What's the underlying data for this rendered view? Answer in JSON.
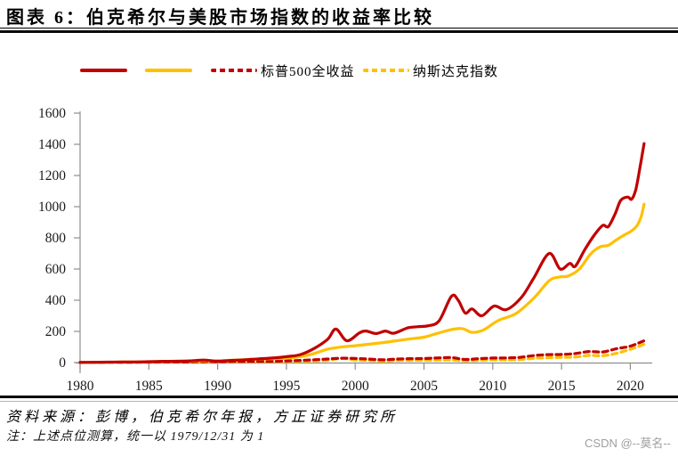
{
  "header": {
    "title": "图表 6：伯克希尔与美股市场指数的收益率比较"
  },
  "legend": {
    "items": [
      {
        "id": "solid-red",
        "label": "",
        "style": "solid",
        "color": "#C00000"
      },
      {
        "id": "solid-yellow",
        "label": "",
        "style": "solid",
        "color": "#FFC000"
      },
      {
        "id": "dashed-red",
        "label": "标普500全收益",
        "style": "dashed",
        "color": "#C00000"
      },
      {
        "id": "dashed-yellow",
        "label": "纳斯达克指数",
        "style": "dashed",
        "color": "#FFC000"
      }
    ]
  },
  "chart_data": {
    "type": "line",
    "title": "图表 6：伯克希尔与美股市场指数的收益率比较",
    "index_note": "统一以 1979/12/31 为 1",
    "grid": false,
    "legend_position": "top",
    "x_axis": {
      "ticks": [
        1980,
        1985,
        1990,
        1995,
        2000,
        2005,
        2010,
        2015,
        2020
      ],
      "range": [
        1980,
        2021.2
      ]
    },
    "y_axis": {
      "ticks": [
        0,
        200,
        400,
        600,
        800,
        1000,
        1200,
        1400,
        1600
      ],
      "range": [
        0,
        1600
      ]
    },
    "series": [
      {
        "id": "dashed_yellow",
        "label": "纳斯达克指数",
        "color": "#FFC000",
        "dashed": true,
        "points": [
          [
            1980,
            1.2
          ],
          [
            1981,
            1.3
          ],
          [
            1982,
            1.5
          ],
          [
            1983,
            1.9
          ],
          [
            1984,
            1.6
          ],
          [
            1985,
            2.1
          ],
          [
            1986,
            2.3
          ],
          [
            1987,
            2.2
          ],
          [
            1988,
            2.5
          ],
          [
            1989,
            3
          ],
          [
            1990,
            2.5
          ],
          [
            1991,
            3.7
          ],
          [
            1992,
            4.4
          ],
          [
            1993,
            5.1
          ],
          [
            1994,
            5
          ],
          [
            1995,
            7
          ],
          [
            1996,
            8.5
          ],
          [
            1997,
            10.4
          ],
          [
            1998,
            14.5
          ],
          [
            1999,
            27
          ],
          [
            2000,
            16.4
          ],
          [
            2001,
            13
          ],
          [
            2002,
            8.8
          ],
          [
            2003,
            13.3
          ],
          [
            2004,
            14.4
          ],
          [
            2005,
            14.6
          ],
          [
            2006,
            16
          ],
          [
            2007,
            17.6
          ],
          [
            2008,
            10.4
          ],
          [
            2009,
            15
          ],
          [
            2010,
            17.6
          ],
          [
            2011,
            17.3
          ],
          [
            2012,
            20
          ],
          [
            2013,
            27.7
          ],
          [
            2014,
            31.4
          ],
          [
            2015,
            33.2
          ],
          [
            2016,
            35.7
          ],
          [
            2017,
            45.7
          ],
          [
            2018,
            44
          ],
          [
            2019,
            59.5
          ],
          [
            2020,
            85
          ],
          [
            2021,
            118
          ]
        ]
      },
      {
        "id": "dashed_red",
        "label": "标普500全收益",
        "color": "#C00000",
        "dashed": true,
        "points": [
          [
            1980,
            1.3
          ],
          [
            1981,
            1.3
          ],
          [
            1982,
            1.6
          ],
          [
            1983,
            2
          ],
          [
            1984,
            2.1
          ],
          [
            1985,
            2.8
          ],
          [
            1986,
            3.3
          ],
          [
            1987,
            3.5
          ],
          [
            1988,
            4
          ],
          [
            1989,
            5.3
          ],
          [
            1990,
            5.1
          ],
          [
            1991,
            6.7
          ],
          [
            1992,
            7.2
          ],
          [
            1993,
            7.9
          ],
          [
            1994,
            8
          ],
          [
            1995,
            11
          ],
          [
            1996,
            13.6
          ],
          [
            1997,
            18
          ],
          [
            1998,
            23
          ],
          [
            1999,
            28
          ],
          [
            2000,
            26
          ],
          [
            2001,
            22.5
          ],
          [
            2002,
            17.5
          ],
          [
            2003,
            22.5
          ],
          [
            2004,
            25
          ],
          [
            2005,
            26
          ],
          [
            2006,
            30
          ],
          [
            2007,
            32
          ],
          [
            2008,
            20
          ],
          [
            2009,
            25
          ],
          [
            2010,
            29
          ],
          [
            2011,
            30
          ],
          [
            2012,
            34
          ],
          [
            2013,
            45
          ],
          [
            2014,
            51
          ],
          [
            2015,
            52
          ],
          [
            2016,
            58
          ],
          [
            2017,
            71
          ],
          [
            2018,
            68
          ],
          [
            2019,
            89
          ],
          [
            2020,
            105
          ],
          [
            2021,
            140
          ]
        ]
      },
      {
        "id": "solid_yellow",
        "label": "",
        "color": "#FFC000",
        "dashed": false,
        "points": [
          [
            1980,
            1.3
          ],
          [
            1981,
            1.7
          ],
          [
            1982,
            2.3
          ],
          [
            1983,
            3.2
          ],
          [
            1984,
            3.6
          ],
          [
            1985,
            5
          ],
          [
            1986,
            7
          ],
          [
            1987,
            8
          ],
          [
            1988,
            9.5
          ],
          [
            1989,
            12
          ],
          [
            1990,
            11
          ],
          [
            1991,
            15
          ],
          [
            1992,
            19
          ],
          [
            1993,
            23
          ],
          [
            1994,
            25
          ],
          [
            1995,
            28
          ],
          [
            1996,
            38
          ],
          [
            1997,
            58
          ],
          [
            1998,
            86
          ],
          [
            1999,
            100
          ],
          [
            2000,
            108
          ],
          [
            2001,
            118
          ],
          [
            2002,
            128
          ],
          [
            2003,
            140
          ],
          [
            2004,
            152
          ],
          [
            2005,
            163
          ],
          [
            2006,
            188
          ],
          [
            2007,
            212
          ],
          [
            2007.8,
            218
          ],
          [
            2008.5,
            194
          ],
          [
            2009.3,
            208
          ],
          [
            2010.4,
            270
          ],
          [
            2011.7,
            315
          ],
          [
            2013,
            415
          ],
          [
            2014.1,
            525
          ],
          [
            2014.8,
            548
          ],
          [
            2015.5,
            556
          ],
          [
            2016.3,
            600
          ],
          [
            2017.1,
            695
          ],
          [
            2017.8,
            742
          ],
          [
            2018.4,
            752
          ],
          [
            2019,
            788
          ],
          [
            2019.6,
            820
          ],
          [
            2020.1,
            845
          ],
          [
            2020.5,
            880
          ],
          [
            2020.8,
            940
          ],
          [
            2021,
            1016
          ]
        ]
      },
      {
        "id": "solid_red",
        "label": "",
        "color": "#C00000",
        "dashed": false,
        "points": [
          [
            1980,
            1.4
          ],
          [
            1981,
            1.9
          ],
          [
            1982,
            2.6
          ],
          [
            1983,
            3.6
          ],
          [
            1984,
            3.8
          ],
          [
            1985,
            5.5
          ],
          [
            1986,
            8
          ],
          [
            1987,
            8.5
          ],
          [
            1988,
            11
          ],
          [
            1989,
            16
          ],
          [
            1990,
            9
          ],
          [
            1991,
            14
          ],
          [
            1992,
            18
          ],
          [
            1993,
            24
          ],
          [
            1994,
            29
          ],
          [
            1995,
            38
          ],
          [
            1996,
            51
          ],
          [
            1997,
            90
          ],
          [
            1998,
            150
          ],
          [
            1998.6,
            215
          ],
          [
            1999.4,
            140
          ],
          [
            2000.3,
            190
          ],
          [
            2000.8,
            202
          ],
          [
            2001.5,
            186
          ],
          [
            2002.2,
            202
          ],
          [
            2002.8,
            188
          ],
          [
            2003.8,
            222
          ],
          [
            2004.5,
            230
          ],
          [
            2005.3,
            236
          ],
          [
            2006.1,
            268
          ],
          [
            2007,
            425
          ],
          [
            2007.5,
            398
          ],
          [
            2008,
            318
          ],
          [
            2008.5,
            344
          ],
          [
            2009.2,
            300
          ],
          [
            2010.1,
            362
          ],
          [
            2011,
            340
          ],
          [
            2012.1,
            420
          ],
          [
            2013,
            545
          ],
          [
            2014.1,
            700
          ],
          [
            2014.9,
            600
          ],
          [
            2015.6,
            636
          ],
          [
            2016,
            618
          ],
          [
            2016.7,
            726
          ],
          [
            2017.4,
            820
          ],
          [
            2018,
            880
          ],
          [
            2018.4,
            872
          ],
          [
            2018.9,
            955
          ],
          [
            2019.3,
            1040
          ],
          [
            2019.8,
            1062
          ],
          [
            2020.1,
            1048
          ],
          [
            2020.4,
            1110
          ],
          [
            2020.7,
            1250
          ],
          [
            2021,
            1405
          ]
        ]
      }
    ]
  },
  "footer": {
    "source": "资料来源：彭博，伯克希尔年报，方正证券研究所",
    "note": "注：上述点位测算，统一以 1979/12/31 为 1",
    "watermark": "CSDN @--莫名--"
  },
  "colors": {
    "accent_red": "#C00000",
    "accent_yellow": "#FFC000",
    "axis_gray": "#8F8F8F",
    "label_dark": "#1a1a1a",
    "watermark_gray": "#9E9E9E"
  }
}
